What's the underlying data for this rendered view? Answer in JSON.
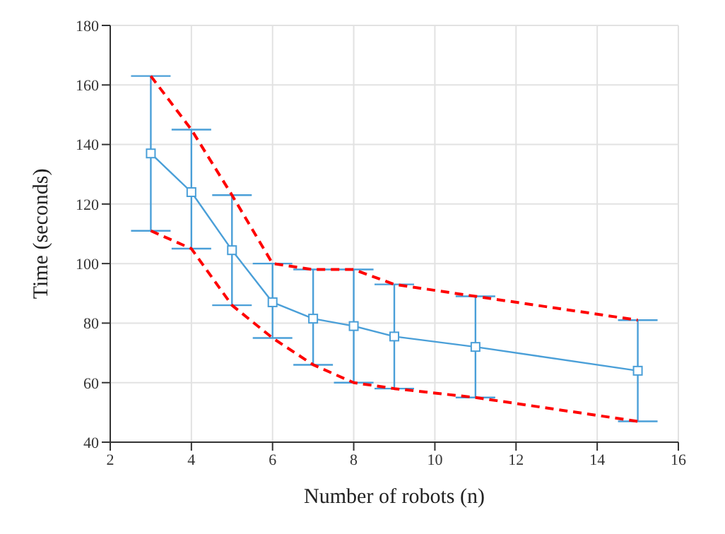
{
  "chart_data": {
    "type": "line",
    "xlabel": "Number of robots (n)",
    "ylabel": "Time (seconds)",
    "x": [
      3,
      4,
      5,
      6,
      7,
      8,
      9,
      11,
      15
    ],
    "series": [
      {
        "color": "#4a9fd8",
        "marker": "square",
        "line_style": "solid",
        "values": [
          137,
          124,
          104.5,
          87,
          81.5,
          79,
          75.5,
          72,
          64
        ],
        "errors": [
          [
            111,
            163
          ],
          [
            105,
            145
          ],
          [
            86,
            123
          ],
          [
            75,
            100
          ],
          [
            66,
            98
          ],
          [
            60,
            98
          ],
          [
            58,
            93
          ],
          [
            55,
            89
          ],
          [
            47,
            81
          ]
        ]
      },
      {
        "color": "#ff0000",
        "marker": "none",
        "line_style": "dashed",
        "values": [
          163,
          145,
          123,
          100,
          98,
          98,
          93,
          89,
          81
        ]
      },
      {
        "color": "#ff0000",
        "marker": "none",
        "line_style": "dashed",
        "values": [
          111,
          105,
          86,
          75,
          66,
          60,
          58,
          55,
          47
        ]
      }
    ],
    "xlim": [
      2,
      16
    ],
    "xticks": [
      2,
      4,
      6,
      8,
      10,
      12,
      14,
      16
    ],
    "ylim": [
      40,
      180
    ],
    "yticks": [
      40,
      60,
      80,
      100,
      120,
      140,
      160,
      180
    ],
    "grid": true
  }
}
